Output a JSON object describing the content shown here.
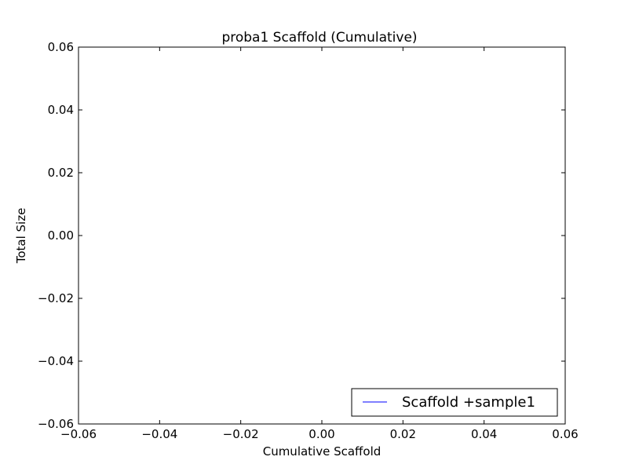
{
  "chart_data": {
    "type": "line",
    "title": "proba1 Scaffold (Cumulative)",
    "xlabel": "Cumulative Scaffold",
    "ylabel": "Total Size",
    "xlim": [
      -0.06,
      0.06
    ],
    "ylim": [
      -0.06,
      0.06
    ],
    "xticks": [
      -0.06,
      -0.04,
      -0.02,
      0.0,
      0.02,
      0.04,
      0.06
    ],
    "yticks": [
      -0.06,
      -0.04,
      -0.02,
      0.0,
      0.02,
      0.04,
      0.06
    ],
    "xtick_labels": [
      "−0.06",
      "−0.04",
      "−0.02",
      "0.00",
      "0.02",
      "0.04",
      "0.06"
    ],
    "ytick_labels": [
      "−0.06",
      "−0.04",
      "−0.02",
      "0.00",
      "0.02",
      "0.04",
      "0.06"
    ],
    "grid": false,
    "legend_position": "lower-right",
    "series": [
      {
        "name": "Scaffold +sample1",
        "color": "#0000ff",
        "x": [],
        "y": []
      }
    ]
  }
}
